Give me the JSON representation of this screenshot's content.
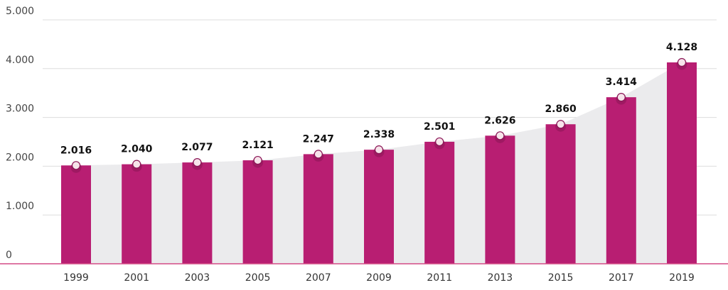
{
  "chart_data": {
    "type": "bar",
    "categories": [
      "1999",
      "2001",
      "2003",
      "2005",
      "2007",
      "2009",
      "2011",
      "2013",
      "2015",
      "2017",
      "2019"
    ],
    "values": [
      2016,
      2040,
      2077,
      2121,
      2247,
      2338,
      2501,
      2626,
      2860,
      3414,
      4128
    ],
    "value_labels": [
      "2.016",
      "2.040",
      "2.077",
      "2.121",
      "2.247",
      "2.338",
      "2.501",
      "2.626",
      "2.860",
      "3.414",
      "4.128"
    ],
    "y_ticks": [
      0,
      1000,
      2000,
      3000,
      4000,
      5000
    ],
    "y_tick_labels": [
      "0",
      "1.000",
      "2.000",
      "3.000",
      "4.000",
      "5.000"
    ],
    "ylim": [
      0,
      5000
    ],
    "grid": true,
    "legend": "none",
    "colors": {
      "bar": "#b81e72",
      "area": "#ebebed",
      "marker_fill": "#f7e3ea",
      "marker_stroke": "#8a1656",
      "axis": "#d34b86",
      "grid": "#dddddd"
    }
  }
}
